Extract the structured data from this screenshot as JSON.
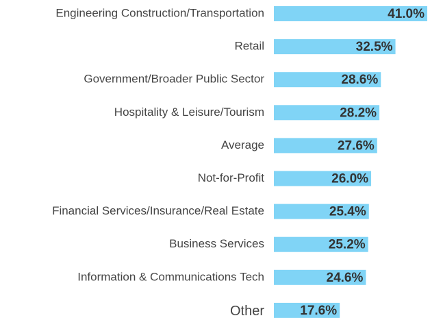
{
  "chart_data": {
    "type": "hbar",
    "categories": [
      "Engineering Construction/Transportation",
      "Retail",
      "Government/Broader Public Sector",
      "Hospitality & Leisure/Tourism",
      "Average",
      "Not-for-Profit",
      "Financial Services/Insurance/Real Estate",
      "Business Services",
      "Information & Communications Tech",
      "Other"
    ],
    "values": [
      41.0,
      32.5,
      28.6,
      28.2,
      27.6,
      26.0,
      25.4,
      25.2,
      24.6,
      17.6
    ],
    "value_labels": [
      "41.0%",
      "32.5%",
      "28.6%",
      "28.2%",
      "27.6%",
      "26.0%",
      "25.4%",
      "25.2%",
      "24.6%",
      "17.6%"
    ],
    "color": "#80d4f6"
  }
}
